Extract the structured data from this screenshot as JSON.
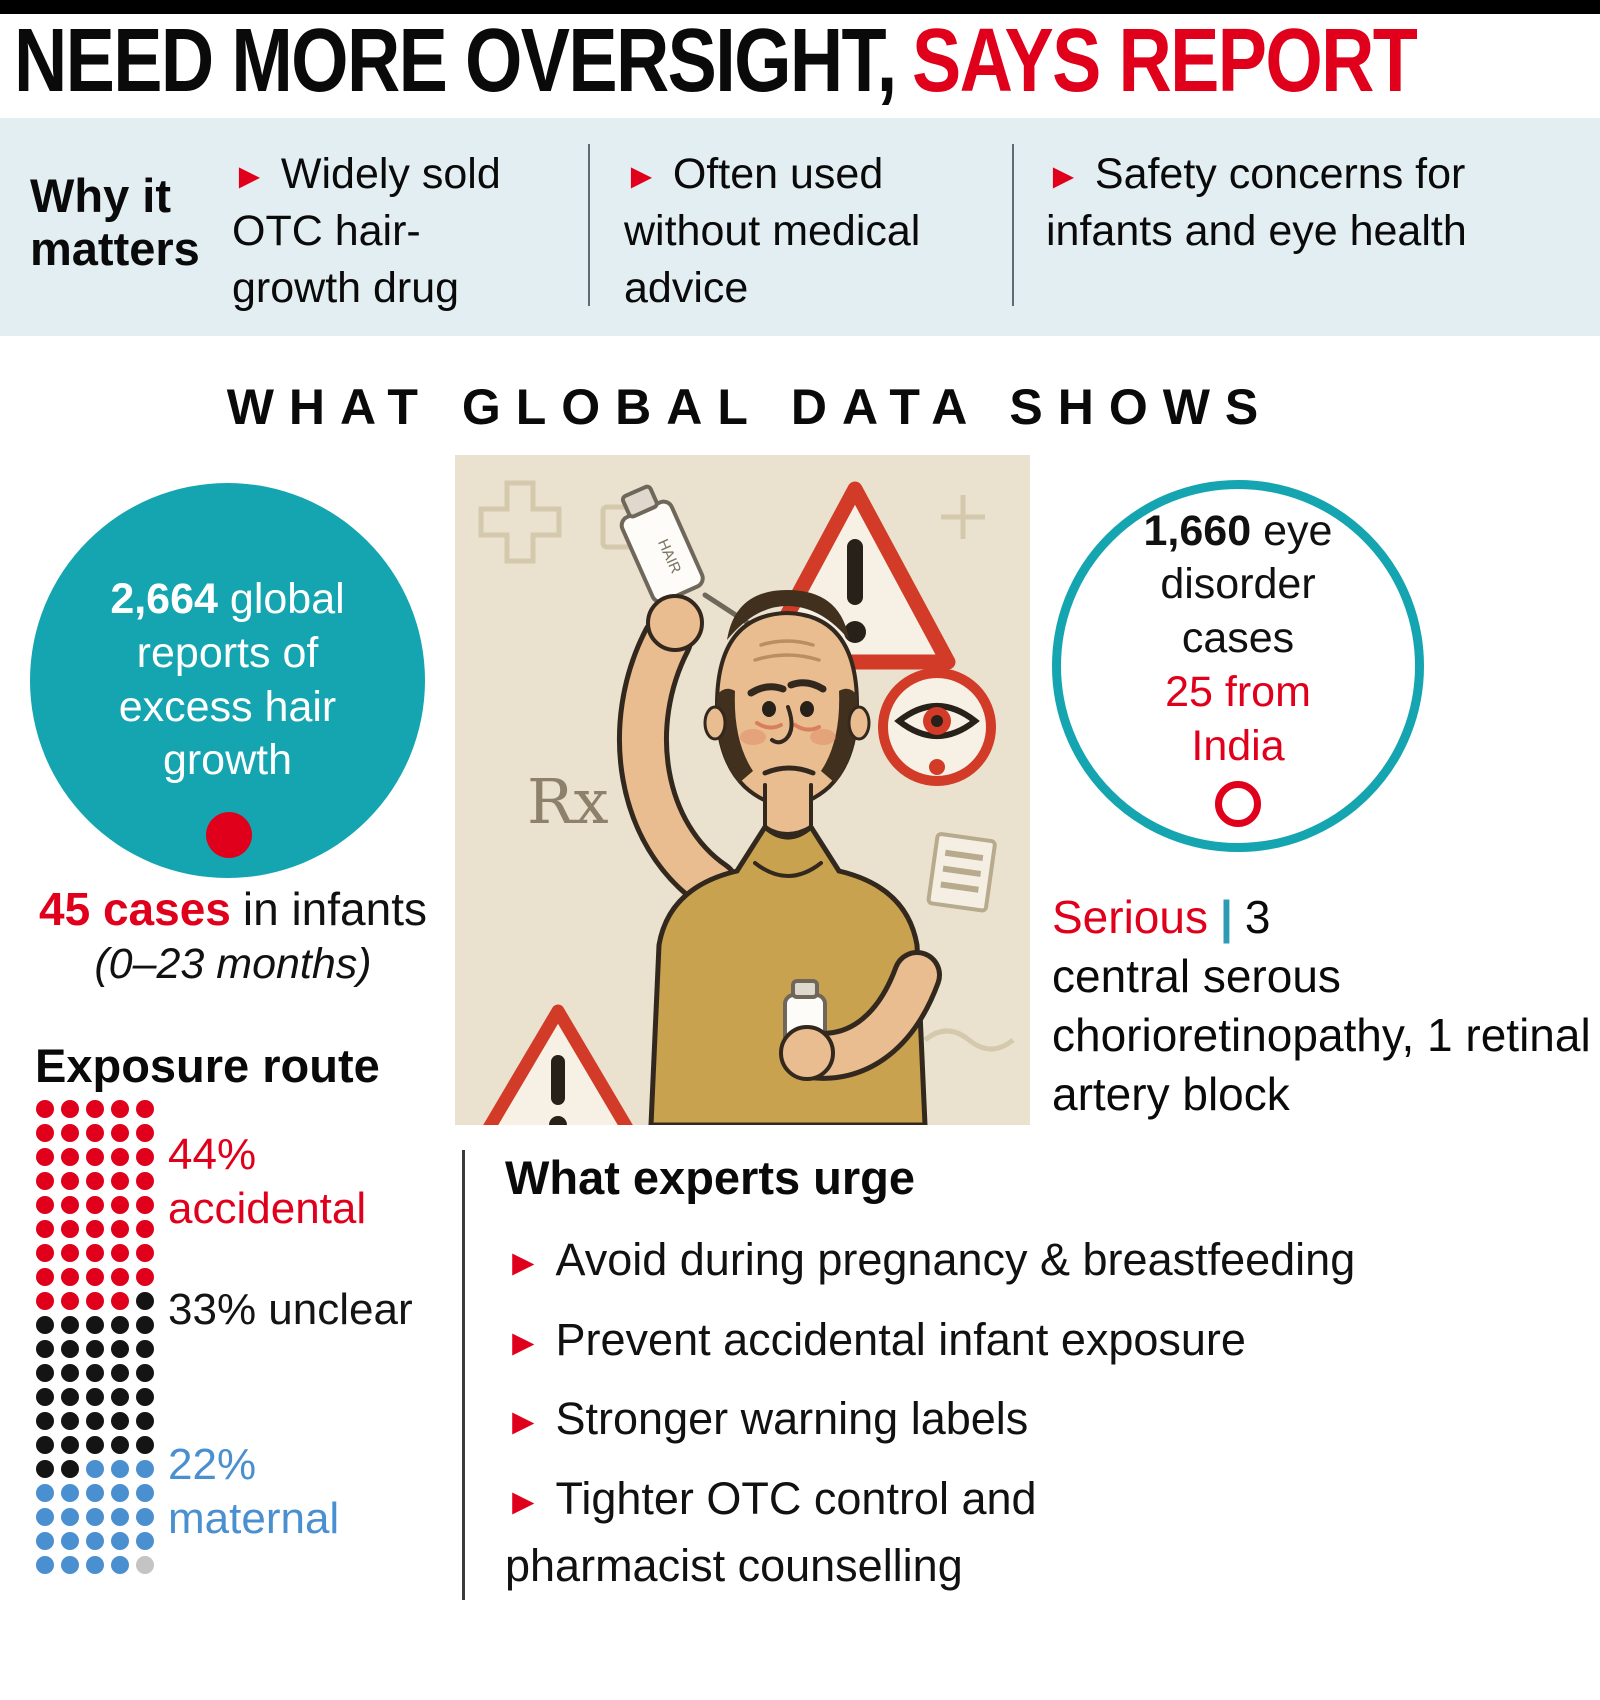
{
  "accent_colors": {
    "red": "#e0001b",
    "teal": "#14a5b0",
    "blue": "#4a90d0",
    "band_bg": "#e3eef2",
    "beige": "#eae2cf"
  },
  "header": {
    "title_black": "NEED MORE OVERSIGHT,",
    "title_red": "SAYS REPORT"
  },
  "why_it_matters": {
    "label": "Why it matters",
    "bullet_icon": "►",
    "items": [
      {
        "text": "Widely sold OTC hair-growth drug"
      },
      {
        "text": "Often used without medical advice"
      },
      {
        "text": "Safety concerns for infants and eye health"
      }
    ]
  },
  "section_title": "WHAT GLOBAL DATA SHOWS",
  "global_reports_circle": {
    "value": "2,664",
    "text": "global reports of excess hair growth"
  },
  "infant_cases": {
    "value": "45 cases",
    "text": "in infants",
    "subtext": "(0–23 months)"
  },
  "exposure": {
    "title": "Exposure route",
    "grid_columns": 5,
    "segments": [
      {
        "name": "accidental",
        "label": "44% accidental",
        "count": 44,
        "color": "#e0001b"
      },
      {
        "name": "unclear",
        "label": "33% unclear",
        "count": 33,
        "color": "#141414"
      },
      {
        "name": "maternal",
        "label": "22% maternal",
        "count": 22,
        "color": "#4a90d0"
      },
      {
        "name": "other",
        "label": "",
        "count": 1,
        "color": "#c4c4c4"
      }
    ]
  },
  "eye_circle": {
    "value": "1,660",
    "text": "eye disorder cases",
    "highlight": "25 from India"
  },
  "serious": {
    "label": "Serious",
    "divider": "|",
    "count": "3",
    "text": "central serous chorioretinopathy, 1 retinal artery block"
  },
  "experts": {
    "title": "What experts urge",
    "bullet_icon": "►",
    "items": [
      "Avoid during pregnancy & breastfeeding",
      "Prevent accidental infant exposure",
      "Stronger warning labels",
      "Tighter OTC control and\npharmacist counselling"
    ]
  },
  "illustration": {
    "rx_symbol": "Rx",
    "warning_symbol": "!",
    "bottle_label": "HAIR"
  },
  "chart_data": {
    "type": "pie",
    "style": "waffle-dot-matrix",
    "title": "Exposure route",
    "categories": [
      "accidental",
      "unclear",
      "maternal",
      "other"
    ],
    "values": [
      44,
      33,
      22,
      1
    ],
    "colors": [
      "#e0001b",
      "#141414",
      "#4a90d0",
      "#c4c4c4"
    ],
    "unit": "percent",
    "legend_position": "right",
    "annotations": [
      "2,664 global reports of excess hair growth",
      "45 cases in infants (0–23 months)",
      "1,660 eye disorder cases, 25 from India",
      "Serious: 3 central serous chorioretinopathy, 1 retinal artery block"
    ]
  }
}
